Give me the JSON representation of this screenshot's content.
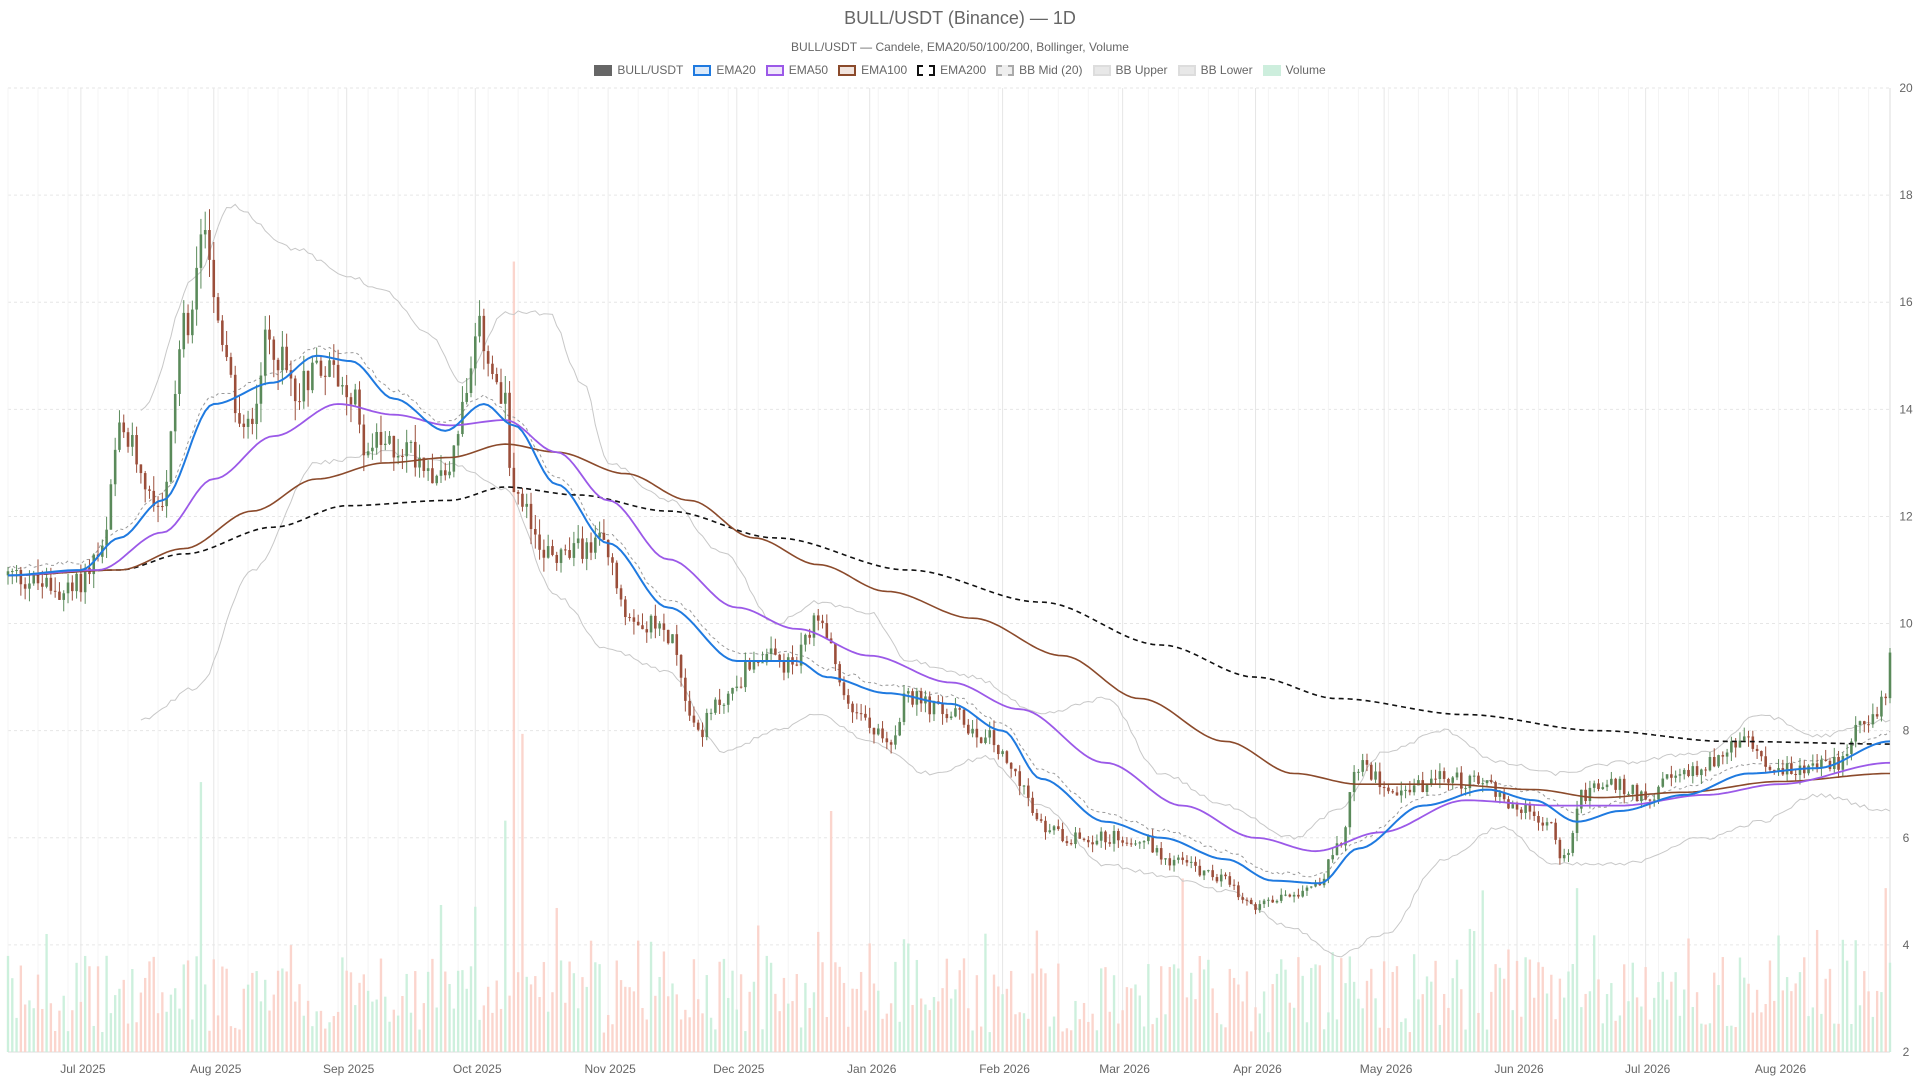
{
  "chart_data": {
    "type": "candlestick",
    "title": "BULL/USDT (Binance) — 1D",
    "subtitle": "BULL/USDT — Candele, EMA20/50/100/200, Bollinger, Volume",
    "legend": [
      {
        "name": "BULL/USDT",
        "color": "#666666",
        "fill": "#666666",
        "dash": false
      },
      {
        "name": "EMA20",
        "color": "#1f7ae0",
        "fill": "#dbe9f9",
        "dash": false
      },
      {
        "name": "EMA50",
        "color": "#9b59e8",
        "fill": "#efe6fb",
        "dash": false
      },
      {
        "name": "EMA100",
        "color": "#8b4a2b",
        "fill": "#f1e4de",
        "dash": false
      },
      {
        "name": "EMA200",
        "color": "#111111",
        "fill": "#ffffff",
        "dash": true
      },
      {
        "name": "BB Mid (20)",
        "color": "#aaaaaa",
        "fill": "#eeeeee",
        "dash": true
      },
      {
        "name": "BB Upper",
        "color": "#dddddd",
        "fill": "#e8e8e8",
        "dash": false
      },
      {
        "name": "BB Lower",
        "color": "#dddddd",
        "fill": "#e8e8e8",
        "dash": false
      },
      {
        "name": "Volume",
        "color": "#cdeedd",
        "fill": "#cdeedd",
        "dash": false
      }
    ],
    "y_axis": {
      "position": "right",
      "min": 2,
      "max": 20,
      "ticks": [
        2,
        4,
        6,
        8,
        10,
        12,
        14,
        16,
        18,
        20
      ]
    },
    "x_axis": {
      "start": "2025-06-14",
      "end": "2026-08-27",
      "ticks": [
        "Jul 2025",
        "Aug 2025",
        "Sep 2025",
        "Oct 2025",
        "Nov 2025",
        "Dec 2025",
        "Jan 2026",
        "Feb 2026",
        "Mar 2026",
        "Apr 2026",
        "May 2026",
        "Jun 2026",
        "Jul 2026",
        "Aug 2026"
      ]
    },
    "grid": true,
    "legend_position": "top-center",
    "colors": {
      "up": "#5a8a5a",
      "down": "#9b4e3a",
      "vol_up": "#c8eed9",
      "vol_down": "#fbd0c8"
    },
    "price_keypoints": [
      [
        "2025-06-14",
        10.9
      ],
      [
        "2025-06-28",
        10.6
      ],
      [
        "2025-07-06",
        11.3
      ],
      [
        "2025-07-10",
        13.5
      ],
      [
        "2025-07-20",
        12.3
      ],
      [
        "2025-07-25",
        15.5
      ],
      [
        "2025-07-30",
        17.5
      ],
      [
        "2025-08-03",
        15.0
      ],
      [
        "2025-08-08",
        13.5
      ],
      [
        "2025-08-14",
        15.3
      ],
      [
        "2025-08-20",
        14.4
      ],
      [
        "2025-08-26",
        14.9
      ],
      [
        "2025-09-01",
        14.5
      ],
      [
        "2025-09-06",
        13.3
      ],
      [
        "2025-09-14",
        13.3
      ],
      [
        "2025-09-24",
        12.8
      ],
      [
        "2025-09-29",
        14.2
      ],
      [
        "2025-10-02",
        15.4
      ],
      [
        "2025-10-08",
        14.0
      ],
      [
        "2025-10-10",
        12.2
      ],
      [
        "2025-10-20",
        11.2
      ],
      [
        "2025-10-30",
        11.5
      ],
      [
        "2025-11-06",
        10.2
      ],
      [
        "2025-11-15",
        9.8
      ],
      [
        "2025-11-22",
        8.0
      ],
      [
        "2025-11-28",
        8.6
      ],
      [
        "2025-12-06",
        9.4
      ],
      [
        "2025-12-14",
        9.2
      ],
      [
        "2025-12-20",
        10.0
      ],
      [
        "2025-12-28",
        8.4
      ],
      [
        "2026-01-05",
        7.8
      ],
      [
        "2026-01-10",
        8.6
      ],
      [
        "2026-01-20",
        8.3
      ],
      [
        "2026-01-28",
        7.9
      ],
      [
        "2026-02-04",
        7.2
      ],
      [
        "2026-02-10",
        6.2
      ],
      [
        "2026-02-18",
        6.0
      ],
      [
        "2026-02-26",
        6.0
      ],
      [
        "2026-03-05",
        6.0
      ],
      [
        "2026-03-12",
        5.6
      ],
      [
        "2026-03-22",
        5.3
      ],
      [
        "2026-04-01",
        4.7
      ],
      [
        "2026-04-10",
        5.0
      ],
      [
        "2026-04-16",
        5.2
      ],
      [
        "2026-04-20",
        5.8
      ],
      [
        "2026-04-25",
        7.3
      ],
      [
        "2026-05-05",
        6.9
      ],
      [
        "2026-05-15",
        7.1
      ],
      [
        "2026-05-25",
        7.0
      ],
      [
        "2026-05-31",
        6.6
      ],
      [
        "2026-06-08",
        6.3
      ],
      [
        "2026-06-12",
        5.6
      ],
      [
        "2026-06-16",
        6.8
      ],
      [
        "2026-06-22",
        7.0
      ],
      [
        "2026-07-01",
        6.8
      ],
      [
        "2026-07-08",
        7.1
      ],
      [
        "2026-07-16",
        7.4
      ],
      [
        "2026-07-24",
        7.8
      ],
      [
        "2026-07-31",
        7.2
      ],
      [
        "2026-08-08",
        7.3
      ],
      [
        "2026-08-15",
        7.4
      ],
      [
        "2026-08-22",
        8.3
      ],
      [
        "2026-08-26",
        8.5
      ],
      [
        "2026-08-27",
        9.3
      ]
    ],
    "ema20_keypoints": [
      [
        "2025-06-14",
        10.9
      ],
      [
        "2025-07-01",
        11.0
      ],
      [
        "2025-07-10",
        11.6
      ],
      [
        "2025-07-20",
        12.3
      ],
      [
        "2025-08-01",
        14.1
      ],
      [
        "2025-08-15",
        14.5
      ],
      [
        "2025-08-25",
        15.0
      ],
      [
        "2025-09-02",
        14.9
      ],
      [
        "2025-09-12",
        14.2
      ],
      [
        "2025-09-24",
        13.6
      ],
      [
        "2025-10-03",
        14.1
      ],
      [
        "2025-10-10",
        13.7
      ],
      [
        "2025-10-20",
        12.6
      ],
      [
        "2025-11-01",
        11.5
      ],
      [
        "2025-11-15",
        10.3
      ],
      [
        "2025-12-01",
        9.3
      ],
      [
        "2025-12-15",
        9.3
      ],
      [
        "2025-12-22",
        9.0
      ],
      [
        "2026-01-05",
        8.7
      ],
      [
        "2026-01-20",
        8.5
      ],
      [
        "2026-02-01",
        8.0
      ],
      [
        "2026-02-10",
        7.1
      ],
      [
        "2026-02-25",
        6.3
      ],
      [
        "2026-03-10",
        6.0
      ],
      [
        "2026-03-25",
        5.6
      ],
      [
        "2026-04-05",
        5.2
      ],
      [
        "2026-04-16",
        5.15
      ],
      [
        "2026-04-25",
        5.8
      ],
      [
        "2026-05-10",
        6.6
      ],
      [
        "2026-05-25",
        6.9
      ],
      [
        "2026-06-05",
        6.7
      ],
      [
        "2026-06-15",
        6.3
      ],
      [
        "2026-06-25",
        6.5
      ],
      [
        "2026-07-10",
        6.8
      ],
      [
        "2026-07-25",
        7.2
      ],
      [
        "2026-08-10",
        7.3
      ],
      [
        "2026-08-27",
        7.8
      ]
    ],
    "ema50_keypoints": [
      [
        "2025-06-14",
        10.9
      ],
      [
        "2025-07-05",
        11.0
      ],
      [
        "2025-07-20",
        11.7
      ],
      [
        "2025-08-01",
        12.7
      ],
      [
        "2025-08-15",
        13.5
      ],
      [
        "2025-08-30",
        14.1
      ],
      [
        "2025-09-12",
        13.9
      ],
      [
        "2025-09-25",
        13.7
      ],
      [
        "2025-10-08",
        13.8
      ],
      [
        "2025-10-20",
        13.2
      ],
      [
        "2025-11-01",
        12.3
      ],
      [
        "2025-11-15",
        11.2
      ],
      [
        "2025-12-01",
        10.3
      ],
      [
        "2025-12-15",
        9.9
      ],
      [
        "2026-01-01",
        9.4
      ],
      [
        "2026-01-20",
        8.9
      ],
      [
        "2026-02-05",
        8.4
      ],
      [
        "2026-02-25",
        7.4
      ],
      [
        "2026-03-15",
        6.6
      ],
      [
        "2026-04-01",
        6.0
      ],
      [
        "2026-04-15",
        5.75
      ],
      [
        "2026-04-30",
        6.1
      ],
      [
        "2026-05-20",
        6.7
      ],
      [
        "2026-06-10",
        6.6
      ],
      [
        "2026-06-25",
        6.6
      ],
      [
        "2026-07-15",
        6.8
      ],
      [
        "2026-08-01",
        7.0
      ],
      [
        "2026-08-27",
        7.4
      ]
    ],
    "ema100_keypoints": [
      [
        "2025-06-14",
        10.9
      ],
      [
        "2025-07-10",
        11.0
      ],
      [
        "2025-07-25",
        11.4
      ],
      [
        "2025-08-10",
        12.1
      ],
      [
        "2025-08-25",
        12.7
      ],
      [
        "2025-09-10",
        13.0
      ],
      [
        "2025-09-25",
        13.1
      ],
      [
        "2025-10-08",
        13.35
      ],
      [
        "2025-10-20",
        13.2
      ],
      [
        "2025-11-05",
        12.8
      ],
      [
        "2025-11-20",
        12.3
      ],
      [
        "2025-12-05",
        11.6
      ],
      [
        "2025-12-20",
        11.1
      ],
      [
        "2026-01-05",
        10.6
      ],
      [
        "2026-01-25",
        10.1
      ],
      [
        "2026-02-15",
        9.4
      ],
      [
        "2026-03-05",
        8.6
      ],
      [
        "2026-03-25",
        7.8
      ],
      [
        "2026-04-10",
        7.2
      ],
      [
        "2026-04-25",
        7.0
      ],
      [
        "2026-05-15",
        7.0
      ],
      [
        "2026-06-05",
        6.9
      ],
      [
        "2026-06-20",
        6.75
      ],
      [
        "2026-07-10",
        6.85
      ],
      [
        "2026-08-01",
        7.05
      ],
      [
        "2026-08-27",
        7.2
      ]
    ],
    "ema200_keypoints": [
      [
        "2025-06-14",
        10.9
      ],
      [
        "2025-07-10",
        11.0
      ],
      [
        "2025-07-25",
        11.3
      ],
      [
        "2025-08-15",
        11.8
      ],
      [
        "2025-09-01",
        12.2
      ],
      [
        "2025-09-25",
        12.3
      ],
      [
        "2025-10-08",
        12.55
      ],
      [
        "2025-10-25",
        12.4
      ],
      [
        "2025-11-15",
        12.1
      ],
      [
        "2025-12-10",
        11.6
      ],
      [
        "2026-01-10",
        11.0
      ],
      [
        "2026-02-10",
        10.4
      ],
      [
        "2026-03-10",
        9.6
      ],
      [
        "2026-04-01",
        9.0
      ],
      [
        "2026-04-20",
        8.6
      ],
      [
        "2026-05-20",
        8.3
      ],
      [
        "2026-06-20",
        8.0
      ],
      [
        "2026-07-20",
        7.8
      ],
      [
        "2026-08-27",
        7.75
      ]
    ],
    "bb_upper_keypoints": [
      [
        "2025-07-15",
        14.0
      ],
      [
        "2025-07-28",
        16.5
      ],
      [
        "2025-08-05",
        17.8
      ],
      [
        "2025-08-20",
        17.0
      ],
      [
        "2025-09-01",
        16.5
      ],
      [
        "2025-09-10",
        16.2
      ],
      [
        "2025-09-20",
        15.4
      ],
      [
        "2025-09-28",
        14.5
      ],
      [
        "2025-10-08",
        15.8
      ],
      [
        "2025-10-18",
        15.8
      ],
      [
        "2025-10-26",
        14.5
      ],
      [
        "2025-11-01",
        13.0
      ],
      [
        "2025-11-15",
        12.3
      ],
      [
        "2025-11-28",
        11.3
      ],
      [
        "2025-12-10",
        10.0
      ],
      [
        "2025-12-20",
        10.4
      ],
      [
        "2026-01-01",
        10.2
      ],
      [
        "2026-01-10",
        9.3
      ],
      [
        "2026-01-25",
        9.0
      ],
      [
        "2026-02-10",
        8.3
      ],
      [
        "2026-02-25",
        8.6
      ],
      [
        "2026-03-10",
        7.2
      ],
      [
        "2026-03-25",
        6.6
      ],
      [
        "2026-04-10",
        6.0
      ],
      [
        "2026-04-20",
        6.5
      ],
      [
        "2026-05-01",
        7.6
      ],
      [
        "2026-05-15",
        8.0
      ],
      [
        "2026-05-28",
        7.4
      ],
      [
        "2026-06-10",
        7.2
      ],
      [
        "2026-06-25",
        7.4
      ],
      [
        "2026-07-15",
        7.6
      ],
      [
        "2026-07-28",
        8.3
      ],
      [
        "2026-08-10",
        7.9
      ],
      [
        "2026-08-27",
        8.2
      ]
    ],
    "bb_lower_keypoints": [
      [
        "2025-07-15",
        8.2
      ],
      [
        "2025-07-28",
        8.8
      ],
      [
        "2025-08-10",
        11.0
      ],
      [
        "2025-08-25",
        13.0
      ],
      [
        "2025-09-10",
        13.2
      ],
      [
        "2025-09-25",
        13.0
      ],
      [
        "2025-10-08",
        12.5
      ],
      [
        "2025-10-20",
        10.5
      ],
      [
        "2025-11-01",
        9.5
      ],
      [
        "2025-11-15",
        9.1
      ],
      [
        "2025-11-28",
        7.6
      ],
      [
        "2025-12-10",
        8.0
      ],
      [
        "2025-12-20",
        8.3
      ],
      [
        "2026-01-01",
        7.8
      ],
      [
        "2026-01-15",
        7.2
      ],
      [
        "2026-01-28",
        7.5
      ],
      [
        "2026-02-10",
        6.6
      ],
      [
        "2026-02-25",
        5.5
      ],
      [
        "2026-03-10",
        5.3
      ],
      [
        "2026-03-25",
        5.0
      ],
      [
        "2026-04-10",
        4.3
      ],
      [
        "2026-04-20",
        3.8
      ],
      [
        "2026-05-01",
        4.2
      ],
      [
        "2026-05-15",
        5.6
      ],
      [
        "2026-05-28",
        6.2
      ],
      [
        "2026-06-10",
        5.5
      ],
      [
        "2026-06-25",
        5.5
      ],
      [
        "2026-07-15",
        6.0
      ],
      [
        "2026-07-28",
        6.3
      ],
      [
        "2026-08-10",
        6.8
      ],
      [
        "2026-08-27",
        6.5
      ]
    ],
    "volume_scale_max": 1.0,
    "volume_spikes": [
      [
        "2025-10-10",
        0.82
      ],
      [
        "2025-10-12",
        0.33
      ],
      [
        "2025-10-08",
        0.24
      ],
      [
        "2025-07-29",
        0.28
      ],
      [
        "2025-12-23",
        0.25
      ],
      [
        "2026-03-15",
        0.18
      ],
      [
        "2026-06-15",
        0.17
      ],
      [
        "2026-08-26",
        0.17
      ]
    ]
  }
}
